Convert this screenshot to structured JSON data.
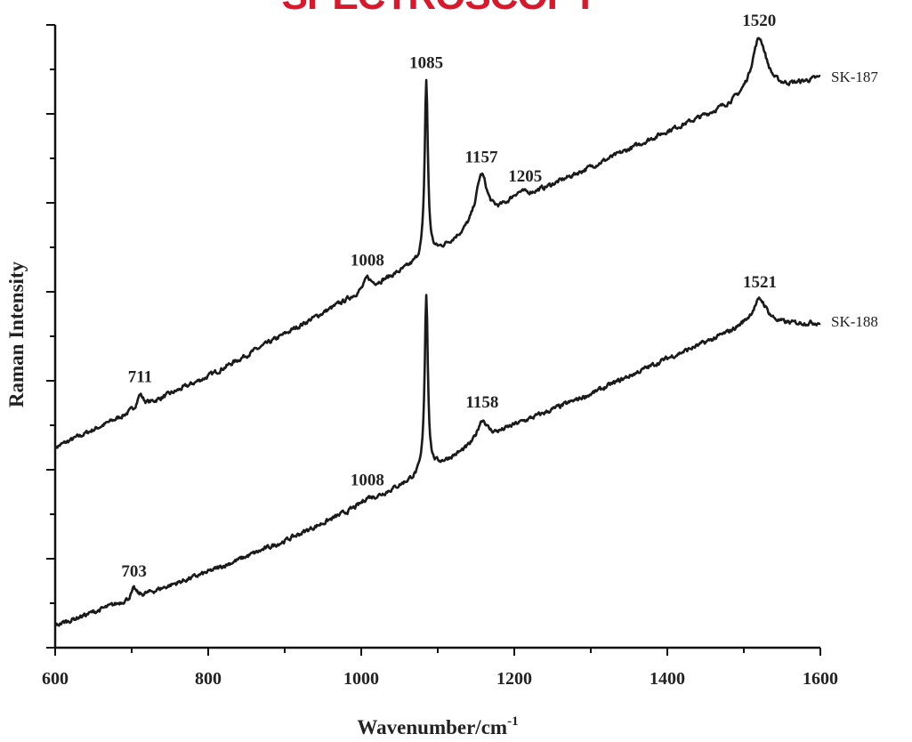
{
  "header": {
    "brand_text": "SPECTROSCOPY",
    "brand_color": "#d7192b"
  },
  "chart_data": {
    "type": "line",
    "title": "",
    "xlabel": "Wavenumber/cm",
    "xlabel_superscript": "-1",
    "ylabel": "Raman Intensity",
    "xlim": [
      600,
      1600
    ],
    "ylim": [
      0,
      7
    ],
    "x_ticks": [
      600,
      800,
      1000,
      1200,
      1400,
      1600
    ],
    "y_tick_labels_shown": false,
    "grid": false,
    "line_color": "#1a1a1a",
    "series": [
      {
        "name": "SK-187",
        "baseline": [
          [
            600,
            2.25
          ],
          [
            800,
            3.05
          ],
          [
            1000,
            4.0
          ],
          [
            1080,
            4.35
          ],
          [
            1100,
            4.45
          ],
          [
            1200,
            5.0
          ],
          [
            1300,
            5.4
          ],
          [
            1400,
            5.8
          ],
          [
            1500,
            6.15
          ],
          [
            1600,
            6.4
          ]
        ],
        "peaks": [
          {
            "position": 711,
            "label": "711",
            "height": 0.15,
            "width": 5
          },
          {
            "position": 1008,
            "label": "1008",
            "height": 0.12,
            "width": 5
          },
          {
            "position": 1085,
            "label": "1085",
            "height": 2.0,
            "width": 2.5
          },
          {
            "position": 1157,
            "label": "1157",
            "height": 0.55,
            "width": 9
          },
          {
            "position": 1205,
            "label": "1205",
            "height": 0.08,
            "width": 12
          },
          {
            "position": 1520,
            "label": "1520",
            "height": 0.65,
            "width": 12
          }
        ]
      },
      {
        "name": "SK-188",
        "baseline": [
          [
            600,
            0.25
          ],
          [
            700,
            0.55
          ],
          [
            800,
            0.85
          ],
          [
            900,
            1.2
          ],
          [
            1000,
            1.6
          ],
          [
            1080,
            1.95
          ],
          [
            1100,
            2.05
          ],
          [
            1200,
            2.5
          ],
          [
            1300,
            2.85
          ],
          [
            1400,
            3.25
          ],
          [
            1500,
            3.6
          ],
          [
            1600,
            3.65
          ]
        ],
        "peaks": [
          {
            "position": 703,
            "label": "703",
            "height": 0.1,
            "width": 4
          },
          {
            "position": 1008,
            "label": "1008",
            "height": 0.05,
            "width": 8
          },
          {
            "position": 1085,
            "label": "",
            "height": 2.0,
            "width": 2.5
          },
          {
            "position": 1158,
            "label": "1158",
            "height": 0.25,
            "width": 8
          },
          {
            "position": 1521,
            "label": "1521",
            "height": 0.3,
            "width": 12
          }
        ]
      }
    ]
  }
}
